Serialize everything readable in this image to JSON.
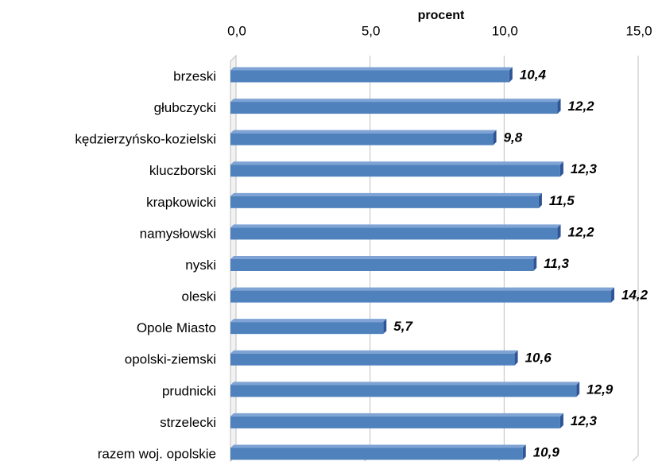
{
  "chart_data": {
    "type": "bar",
    "orientation": "horizontal",
    "x_label": "procent",
    "categories": [
      "brzeski",
      "głubczycki",
      "kędzierzyńsko-kozielski",
      "kluczborski",
      "krapkowicki",
      "namysłowski",
      "nyski",
      "oleski",
      "Opole Miasto",
      "opolski-ziemski",
      "prudnicki",
      "strzelecki",
      "razem woj. opolskie"
    ],
    "values": [
      10.4,
      12.2,
      9.8,
      12.3,
      11.5,
      12.2,
      11.3,
      14.2,
      5.7,
      10.6,
      12.9,
      12.3,
      10.9
    ],
    "value_labels": [
      "10,4",
      "12,2",
      "9,8",
      "12,3",
      "11,5",
      "12,2",
      "11,3",
      "14,2",
      "5,7",
      "10,6",
      "12,9",
      "12,3",
      "10,9"
    ],
    "color": "#4f81bd",
    "xlim": [
      0,
      15
    ],
    "xticks": [
      {
        "value": 0,
        "label": "0,0"
      },
      {
        "value": 5,
        "label": "5,0"
      },
      {
        "value": 10,
        "label": "10,0"
      },
      {
        "value": 15,
        "label": "15,0"
      }
    ],
    "grid": true
  }
}
